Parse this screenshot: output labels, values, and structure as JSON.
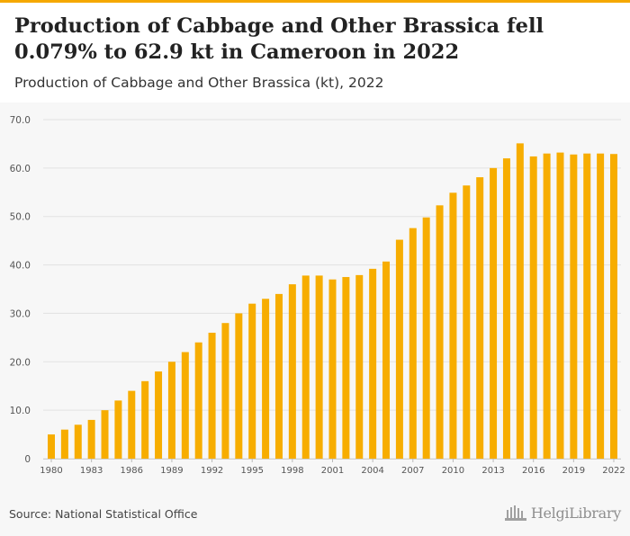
{
  "header": {
    "title": "Production of Cabbage and Other Brassica fell 0.079% to 62.9 kt in Cameroon in 2022",
    "subtitle": "Production of Cabbage and Other Brassica (kt), 2022"
  },
  "footer": {
    "source": "Source: National Statistical Office",
    "logo_text": "HelgiLibrary"
  },
  "colors": {
    "accent": "#f5a800",
    "bar": "#f7ad00",
    "grid": "#e2e2e2",
    "background": "#f7f7f7"
  },
  "chart_data": {
    "type": "bar",
    "title": "Production of Cabbage and Other Brassica (kt), 2022",
    "xlabel": "",
    "ylabel": "",
    "ylim": [
      0,
      70
    ],
    "yticks": [
      0,
      10.0,
      20.0,
      30.0,
      40.0,
      50.0,
      60.0,
      70.0
    ],
    "ytick_labels": [
      "0",
      "10.0",
      "20.0",
      "30.0",
      "40.0",
      "50.0",
      "60.0",
      "70.0"
    ],
    "xtick_labels": [
      "1980",
      "1983",
      "1986",
      "1989",
      "1992",
      "1995",
      "1998",
      "2001",
      "2004",
      "2007",
      "2010",
      "2013",
      "2016",
      "2019",
      "2022"
    ],
    "grid": true,
    "categories": [
      "1980",
      "1981",
      "1982",
      "1983",
      "1984",
      "1985",
      "1986",
      "1987",
      "1988",
      "1989",
      "1990",
      "1991",
      "1992",
      "1993",
      "1994",
      "1995",
      "1996",
      "1997",
      "1998",
      "1999",
      "2000",
      "2001",
      "2002",
      "2003",
      "2004",
      "2005",
      "2006",
      "2007",
      "2008",
      "2009",
      "2010",
      "2011",
      "2012",
      "2013",
      "2014",
      "2015",
      "2016",
      "2017",
      "2018",
      "2019",
      "2020",
      "2021",
      "2022"
    ],
    "values": [
      5.0,
      6.0,
      7.0,
      8.0,
      10.0,
      12.0,
      14.0,
      16.0,
      18.0,
      20.0,
      22.0,
      24.0,
      26.0,
      28.0,
      30.0,
      32.0,
      33.0,
      34.0,
      36.0,
      37.8,
      37.8,
      37.0,
      37.5,
      37.9,
      39.2,
      40.7,
      45.2,
      47.6,
      49.8,
      52.3,
      54.9,
      56.4,
      58.1,
      60.0,
      62.0,
      65.1,
      62.4,
      63.0,
      63.2,
      62.8,
      63.0,
      63.0,
      62.9
    ]
  }
}
